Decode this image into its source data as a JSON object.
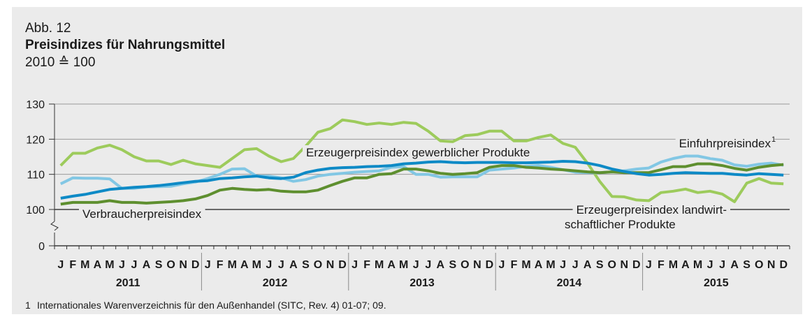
{
  "chart_data": {
    "type": "line",
    "figure_label": "Abb. 12",
    "title": "Preisindizes für Nahrungsmittel",
    "subtitle": "2010 ≙ 100",
    "categories": [
      "J",
      "F",
      "M",
      "A",
      "M",
      "J",
      "J",
      "A",
      "S",
      "O",
      "N",
      "D",
      "J",
      "F",
      "M",
      "A",
      "M",
      "J",
      "J",
      "A",
      "S",
      "O",
      "N",
      "D",
      "J",
      "F",
      "M",
      "A",
      "M",
      "J",
      "J",
      "A",
      "S",
      "O",
      "N",
      "D",
      "J",
      "F",
      "M",
      "A",
      "M",
      "J",
      "J",
      "A",
      "S",
      "O",
      "N",
      "D",
      "J",
      "F",
      "M",
      "A",
      "M",
      "J",
      "J",
      "A",
      "S",
      "O",
      "N",
      "D"
    ],
    "years": [
      "2011",
      "2012",
      "2013",
      "2014",
      "2015"
    ],
    "ylim": [
      0,
      130
    ],
    "y_break": [
      0,
      100
    ],
    "yticks": [
      0,
      100,
      110,
      120,
      130
    ],
    "grid": true,
    "series": [
      {
        "name": [
          "Erzeugerpreisindex landwirt-",
          "schaftlicher Produkte"
        ],
        "color": "#9dcb5c",
        "values": [
          112.5,
          116,
          116,
          117.5,
          118.3,
          117,
          115,
          113.8,
          113.8,
          112.8,
          114,
          113,
          112.5,
          112,
          114.5,
          117,
          117.3,
          115.2,
          113.6,
          114.5,
          118,
          122,
          123,
          125.5,
          125,
          124.2,
          124.6,
          124.2,
          124.8,
          124.5,
          122.3,
          119.5,
          119.3,
          121,
          121.3,
          122.3,
          122.3,
          119.5,
          119.5,
          120.5,
          121.2,
          118.8,
          117.7,
          113.2,
          108,
          103.7,
          103.6,
          102.7,
          102.5,
          104.8,
          105.2,
          105.8,
          104.8,
          105.2,
          104.4,
          102.2,
          107.5,
          108.8,
          107.5,
          107.3
        ]
      },
      {
        "name": "Einfuhrpreisindex",
        "footnote_ref": "1",
        "color": "#82c7e4",
        "values": [
          107.3,
          109,
          108.9,
          108.9,
          108.7,
          106,
          106,
          106.4,
          106.5,
          106.6,
          107.3,
          107.8,
          108.8,
          110,
          111.5,
          111.6,
          109.5,
          109.5,
          109,
          108,
          108.5,
          109.5,
          110,
          110.3,
          110.6,
          110.8,
          111,
          112,
          112.2,
          110,
          110,
          109.2,
          109.3,
          109.3,
          109.3,
          111.2,
          111.5,
          111.8,
          112.3,
          112.5,
          112,
          111.3,
          110.6,
          110.5,
          110.5,
          110.7,
          111,
          111.5,
          111.8,
          113.5,
          114.5,
          115.2,
          115.2,
          114.5,
          114,
          112.7,
          112.3,
          112.9,
          113.2,
          112.6
        ]
      },
      {
        "name": "Verbraucherpreisindex",
        "color": "#5e8f2f",
        "values": [
          101.5,
          102,
          102,
          102,
          102.5,
          102,
          102,
          101.8,
          102,
          102.2,
          102.5,
          103,
          104,
          105.5,
          106,
          105.7,
          105.5,
          105.7,
          105.2,
          105,
          105,
          105.5,
          106.8,
          108,
          109,
          109,
          110,
          110.2,
          111.5,
          111.5,
          111,
          110.3,
          110,
          110.2,
          110.5,
          112,
          112.5,
          112.5,
          112,
          111.8,
          111.5,
          111.3,
          111,
          110.7,
          110.5,
          110.7,
          110.5,
          110.5,
          110.5,
          111.3,
          112.2,
          112.2,
          113,
          113,
          112.5,
          111.7,
          111.2,
          112,
          112.5,
          112.8
        ]
      },
      {
        "name": "Erzeugerpreisindex gewerblicher Produkte",
        "color": "#0e8ac6",
        "values": [
          103.2,
          103.8,
          104.3,
          105,
          105.7,
          106,
          106.3,
          106.5,
          106.8,
          107.2,
          107.6,
          108,
          108.2,
          108.8,
          109,
          109.3,
          109.5,
          109,
          108.8,
          109.2,
          110.5,
          111.2,
          111.7,
          111.9,
          112,
          112.2,
          112.3,
          112.5,
          113,
          113.2,
          113.5,
          113.6,
          113.4,
          113.3,
          113.4,
          113.4,
          113.4,
          113.3,
          113.3,
          113.4,
          113.5,
          113.7,
          113.6,
          113.2,
          112.5,
          111.5,
          110.8,
          110.2,
          109.8,
          110,
          110.3,
          110.5,
          110.4,
          110.3,
          110.3,
          110,
          109.8,
          110.2,
          110,
          109.8
        ]
      }
    ],
    "footnote": {
      "marker": "1",
      "text": "Internationales Warenverzeichnis für den Außenhandel (SITC, Rev. 4) 01-07; 09."
    }
  }
}
